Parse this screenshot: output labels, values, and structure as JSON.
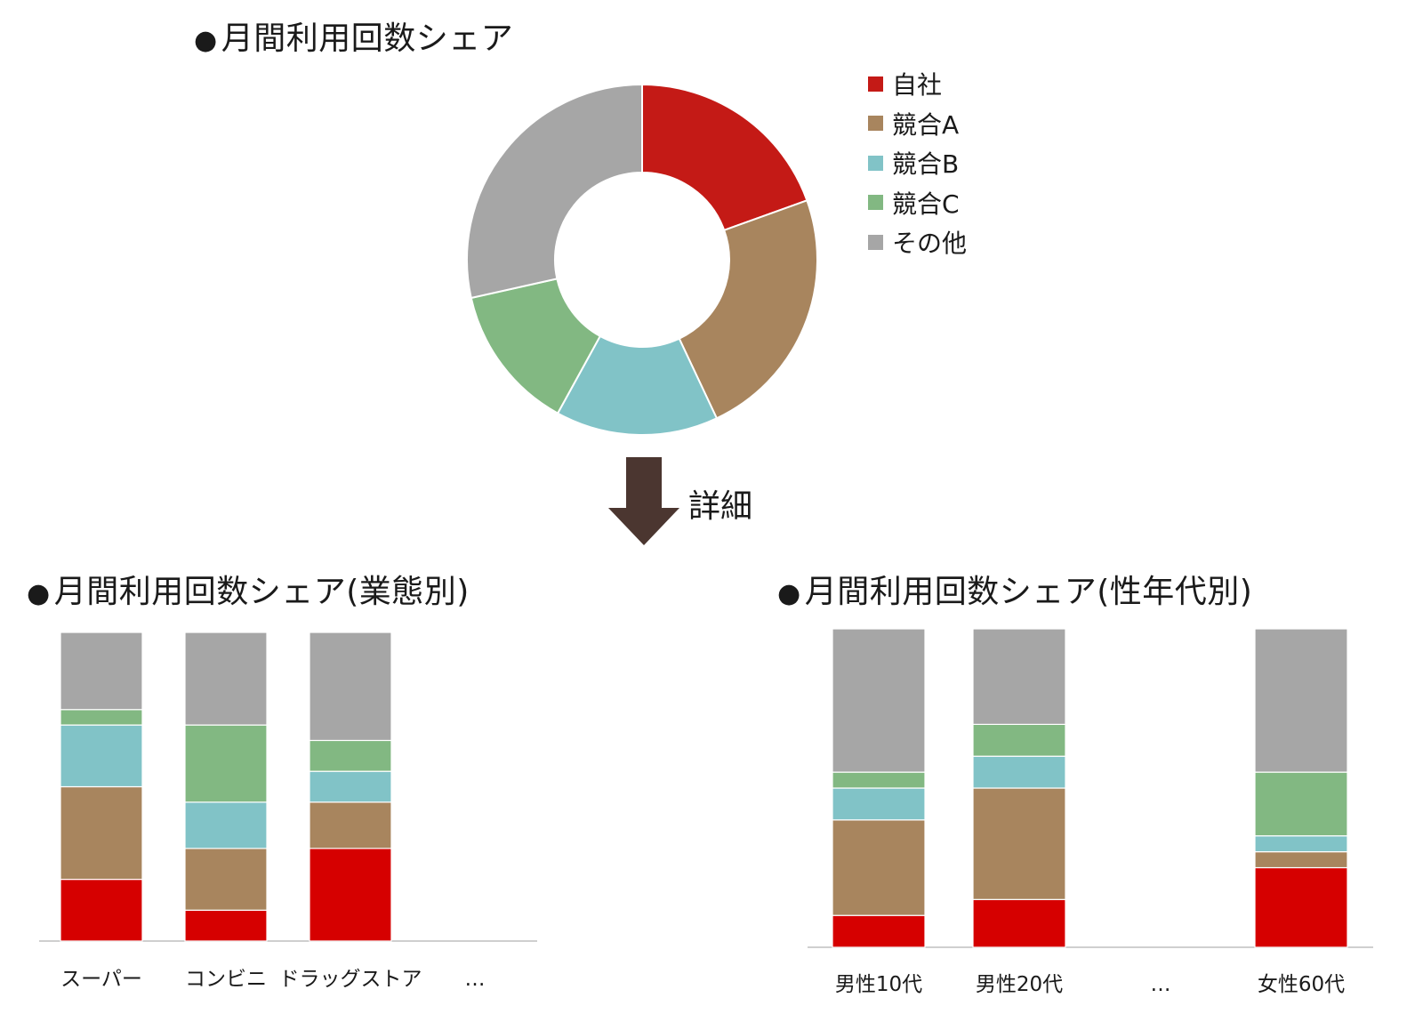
{
  "titles": {
    "bullet": "●",
    "main": "月間利用回数シェア",
    "business": "月間利用回数シェア(業態別)",
    "demographic": "月間利用回数シェア(性年代別)"
  },
  "detail_label": "詳細",
  "colors": {
    "jisha": "#c41a16",
    "bar_jisha": "#d60000",
    "kyogo_a": "#a8855e",
    "kyogo_b": "#81c3c7",
    "kyogo_c": "#82b882",
    "other": "#a6a6a6",
    "arrow": "#4b3630",
    "axis": "#bfbfbf"
  },
  "legend": [
    {
      "label": "自社",
      "color": "#c41a16"
    },
    {
      "label": "競合A",
      "color": "#a8855e"
    },
    {
      "label": "競合B",
      "color": "#81c3c7"
    },
    {
      "label": "競合C",
      "color": "#82b882"
    },
    {
      "label": "その他",
      "color": "#a6a6a6"
    }
  ],
  "chart_data": [
    {
      "type": "pie",
      "title": "月間利用回数シェア",
      "categories": [
        "自社",
        "競合A",
        "競合B",
        "競合C",
        "その他"
      ],
      "values": [
        19.5,
        23.5,
        15,
        13.5,
        28.5
      ],
      "colors": [
        "#c41a16",
        "#a8855e",
        "#81c3c7",
        "#82b882",
        "#a6a6a6"
      ]
    },
    {
      "type": "bar",
      "stacked": true,
      "title": "月間利用回数シェア(業態別)",
      "categories": [
        "スーパー",
        "コンビニ",
        "ドラッグストア",
        "…"
      ],
      "series": [
        {
          "name": "自社",
          "color": "#d60000",
          "values": [
            20,
            10,
            30,
            null
          ]
        },
        {
          "name": "競合A",
          "color": "#a8855e",
          "values": [
            30,
            20,
            15,
            null
          ]
        },
        {
          "name": "競合B",
          "color": "#81c3c7",
          "values": [
            20,
            15,
            10,
            null
          ]
        },
        {
          "name": "競合C",
          "color": "#82b882",
          "values": [
            5,
            25,
            10,
            null
          ]
        },
        {
          "name": "その他",
          "color": "#a6a6a6",
          "values": [
            25,
            30,
            35,
            null
          ]
        }
      ],
      "ylim": [
        0,
        100
      ]
    },
    {
      "type": "bar",
      "stacked": true,
      "title": "月間利用回数シェア(性年代別)",
      "categories": [
        "男性10代",
        "男性20代",
        "…",
        "女性60代"
      ],
      "series": [
        {
          "name": "自社",
          "color": "#d60000",
          "values": [
            10,
            15,
            null,
            25
          ]
        },
        {
          "name": "競合A",
          "color": "#a8855e",
          "values": [
            30,
            35,
            null,
            5
          ]
        },
        {
          "name": "競合B",
          "color": "#81c3c7",
          "values": [
            10,
            10,
            null,
            5
          ]
        },
        {
          "name": "競合C",
          "color": "#82b882",
          "values": [
            5,
            10,
            null,
            20
          ]
        },
        {
          "name": "その他",
          "color": "#a6a6a6",
          "values": [
            45,
            30,
            null,
            45
          ]
        }
      ],
      "ylim": [
        0,
        100
      ]
    }
  ]
}
